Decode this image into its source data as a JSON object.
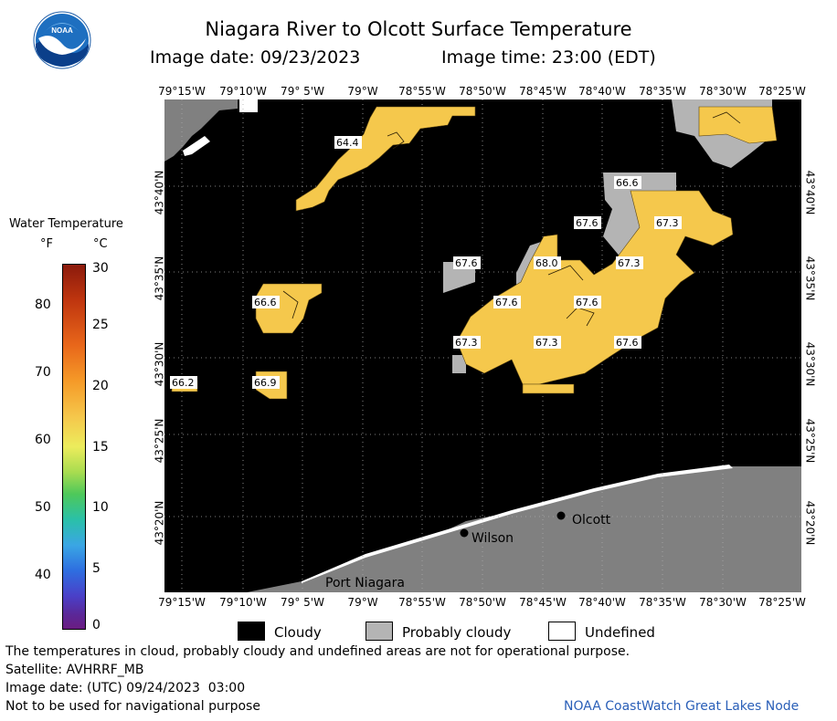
{
  "header": {
    "title": "Niagara River to Olcott Surface Temperature",
    "date_label": "Image date: 09/23/2023",
    "time_label": "Image time: 23:00 (EDT)"
  },
  "logo": {
    "text": "NOAA"
  },
  "map": {
    "lon_ticks": [
      "79°15'W",
      "79°10'W",
      "79° 5'W",
      "79°W",
      "78°55'W",
      "78°50'W",
      "78°45'W",
      "78°40'W",
      "78°35'W",
      "78°30'W",
      "78°25'W"
    ],
    "lat_ticks": [
      "43°40'N",
      "43°35'N",
      "43°30'N",
      "43°25'N",
      "43°20'N"
    ],
    "places": [
      "Olcott",
      "Wilson",
      "Port Niagara"
    ],
    "temperature_labels": [
      "64.4",
      "66.6",
      "67.6",
      "67.3",
      "67.6",
      "68.0",
      "67.3",
      "66.6",
      "67.6",
      "67.6",
      "67.3",
      "67.3",
      "67.6",
      "66.2",
      "66.9"
    ],
    "colors": {
      "cloud": "#000000",
      "probably_cloudy": "#b4b4b4",
      "land": "#808080",
      "warm": "#f5c84c",
      "undefined": "#ffffff"
    }
  },
  "colorbar": {
    "title": "Water Temperature",
    "unit_f": "°F",
    "unit_c": "°C",
    "f_ticks": [
      "80",
      "70",
      "60",
      "50",
      "40"
    ],
    "c_ticks": [
      "30",
      "25",
      "20",
      "15",
      "10",
      "5",
      "0"
    ]
  },
  "legend": {
    "cloudy": "Cloudy",
    "probably_cloudy": "Probably cloudy",
    "undefined": "Undefined"
  },
  "footer": {
    "note": "The temperatures in cloud, probably cloudy and undefined areas are not for operational purpose.",
    "satellite": "Satellite: AVHRRF_MB",
    "utc_date": "Image date: (UTC) 09/24/2023  03:00",
    "nav_note": "Not to be used for navigational purpose",
    "credit": "NOAA CoastWatch Great Lakes Node"
  }
}
